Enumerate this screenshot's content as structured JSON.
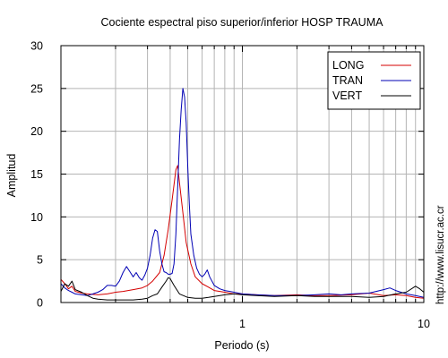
{
  "page": {
    "side_url": "http://www.lisucr.ac.cr"
  },
  "chart_data": {
    "type": "line",
    "title": "Cociente espectral piso superior/inferior  HOSP TRAUMA",
    "xlabel": "Periodo (s)",
    "ylabel": "Amplitud",
    "xscale": "log",
    "xlim": [
      0.1,
      10
    ],
    "ylim": [
      0,
      30
    ],
    "xtick_labels": [
      {
        "value": 1,
        "label": "1"
      },
      {
        "value": 10,
        "label": "10"
      }
    ],
    "ytick_labels": [
      {
        "value": 0,
        "label": "0"
      },
      {
        "value": 5,
        "label": "5"
      },
      {
        "value": 10,
        "label": "10"
      },
      {
        "value": 15,
        "label": "15"
      },
      {
        "value": 20,
        "label": "20"
      },
      {
        "value": 25,
        "label": "25"
      },
      {
        "value": 30,
        "label": "30"
      }
    ],
    "grid": true,
    "legend_position": "top-right",
    "series": [
      {
        "name": "LONG",
        "color": "#d40000",
        "points": [
          [
            0.1,
            2.7
          ],
          [
            0.105,
            2.2
          ],
          [
            0.11,
            1.6
          ],
          [
            0.115,
            1.9
          ],
          [
            0.12,
            1.3
          ],
          [
            0.13,
            1.1
          ],
          [
            0.14,
            1.0
          ],
          [
            0.16,
            0.9
          ],
          [
            0.18,
            1.0
          ],
          [
            0.2,
            1.2
          ],
          [
            0.22,
            1.3
          ],
          [
            0.25,
            1.5
          ],
          [
            0.28,
            1.7
          ],
          [
            0.3,
            2.0
          ],
          [
            0.32,
            2.5
          ],
          [
            0.35,
            3.5
          ],
          [
            0.37,
            5.5
          ],
          [
            0.39,
            8.5
          ],
          [
            0.41,
            12.0
          ],
          [
            0.43,
            15.5
          ],
          [
            0.44,
            16.0
          ],
          [
            0.45,
            14.0
          ],
          [
            0.47,
            10.5
          ],
          [
            0.49,
            7.0
          ],
          [
            0.52,
            4.5
          ],
          [
            0.55,
            3.0
          ],
          [
            0.6,
            2.2
          ],
          [
            0.65,
            1.8
          ],
          [
            0.7,
            1.4
          ],
          [
            0.8,
            1.2
          ],
          [
            0.9,
            1.0
          ],
          [
            1.0,
            1.0
          ],
          [
            1.2,
            0.9
          ],
          [
            1.5,
            0.8
          ],
          [
            2.0,
            0.9
          ],
          [
            2.5,
            0.8
          ],
          [
            3.0,
            0.8
          ],
          [
            4.0,
            0.9
          ],
          [
            5.0,
            1.1
          ],
          [
            6.0,
            0.8
          ],
          [
            7.0,
            0.9
          ],
          [
            8.0,
            0.8
          ],
          [
            9.0,
            0.6
          ],
          [
            10.0,
            0.5
          ]
        ]
      },
      {
        "name": "TRAN",
        "color": "#0000b4",
        "points": [
          [
            0.1,
            2.2
          ],
          [
            0.105,
            1.7
          ],
          [
            0.11,
            1.4
          ],
          [
            0.115,
            1.2
          ],
          [
            0.12,
            1.0
          ],
          [
            0.13,
            0.9
          ],
          [
            0.14,
            0.8
          ],
          [
            0.15,
            1.0
          ],
          [
            0.16,
            1.2
          ],
          [
            0.17,
            1.5
          ],
          [
            0.18,
            2.0
          ],
          [
            0.19,
            2.0
          ],
          [
            0.2,
            1.9
          ],
          [
            0.21,
            2.5
          ],
          [
            0.22,
            3.5
          ],
          [
            0.23,
            4.2
          ],
          [
            0.24,
            3.6
          ],
          [
            0.25,
            3.0
          ],
          [
            0.26,
            3.5
          ],
          [
            0.27,
            2.9
          ],
          [
            0.28,
            2.6
          ],
          [
            0.29,
            3.2
          ],
          [
            0.3,
            4.0
          ],
          [
            0.31,
            5.5
          ],
          [
            0.32,
            7.5
          ],
          [
            0.33,
            8.5
          ],
          [
            0.34,
            8.3
          ],
          [
            0.35,
            6.0
          ],
          [
            0.36,
            4.5
          ],
          [
            0.37,
            3.6
          ],
          [
            0.38,
            3.5
          ],
          [
            0.39,
            3.3
          ],
          [
            0.4,
            3.3
          ],
          [
            0.41,
            3.4
          ],
          [
            0.42,
            4.5
          ],
          [
            0.43,
            8.0
          ],
          [
            0.44,
            13.5
          ],
          [
            0.45,
            19.0
          ],
          [
            0.46,
            22.5
          ],
          [
            0.47,
            25.0
          ],
          [
            0.48,
            24.0
          ],
          [
            0.49,
            21.0
          ],
          [
            0.5,
            16.0
          ],
          [
            0.51,
            11.5
          ],
          [
            0.52,
            8.0
          ],
          [
            0.54,
            5.5
          ],
          [
            0.56,
            4.0
          ],
          [
            0.58,
            3.3
          ],
          [
            0.6,
            3.0
          ],
          [
            0.62,
            3.3
          ],
          [
            0.64,
            3.8
          ],
          [
            0.66,
            3.0
          ],
          [
            0.7,
            2.0
          ],
          [
            0.75,
            1.6
          ],
          [
            0.8,
            1.4
          ],
          [
            0.9,
            1.2
          ],
          [
            1.0,
            1.0
          ],
          [
            1.2,
            0.9
          ],
          [
            1.5,
            0.8
          ],
          [
            2.0,
            0.8
          ],
          [
            2.5,
            0.9
          ],
          [
            3.0,
            1.0
          ],
          [
            3.5,
            0.9
          ],
          [
            4.0,
            1.0
          ],
          [
            5.0,
            1.1
          ],
          [
            6.0,
            1.5
          ],
          [
            6.5,
            1.7
          ],
          [
            7.0,
            1.4
          ],
          [
            8.0,
            1.0
          ],
          [
            9.0,
            0.8
          ],
          [
            10.0,
            0.6
          ]
        ]
      },
      {
        "name": "VERT",
        "color": "#000000",
        "points": [
          [
            0.1,
            1.3
          ],
          [
            0.105,
            2.2
          ],
          [
            0.11,
            1.9
          ],
          [
            0.115,
            2.5
          ],
          [
            0.12,
            1.5
          ],
          [
            0.13,
            1.2
          ],
          [
            0.14,
            0.8
          ],
          [
            0.15,
            0.5
          ],
          [
            0.16,
            0.4
          ],
          [
            0.18,
            0.3
          ],
          [
            0.2,
            0.3
          ],
          [
            0.22,
            0.3
          ],
          [
            0.25,
            0.3
          ],
          [
            0.28,
            0.4
          ],
          [
            0.3,
            0.5
          ],
          [
            0.32,
            0.8
          ],
          [
            0.34,
            1.0
          ],
          [
            0.36,
            1.8
          ],
          [
            0.38,
            2.5
          ],
          [
            0.39,
            2.9
          ],
          [
            0.4,
            2.8
          ],
          [
            0.42,
            2.0
          ],
          [
            0.45,
            1.0
          ],
          [
            0.5,
            0.6
          ],
          [
            0.55,
            0.5
          ],
          [
            0.6,
            0.5
          ],
          [
            0.65,
            0.6
          ],
          [
            0.7,
            0.7
          ],
          [
            0.8,
            0.9
          ],
          [
            0.9,
            1.0
          ],
          [
            1.0,
            0.9
          ],
          [
            1.2,
            0.8
          ],
          [
            1.5,
            0.7
          ],
          [
            2.0,
            0.8
          ],
          [
            2.5,
            0.7
          ],
          [
            3.0,
            0.7
          ],
          [
            4.0,
            0.7
          ],
          [
            5.0,
            0.6
          ],
          [
            6.0,
            0.7
          ],
          [
            7.0,
            1.0
          ],
          [
            8.0,
            1.2
          ],
          [
            9.0,
            1.9
          ],
          [
            9.5,
            1.6
          ],
          [
            10.0,
            1.2
          ]
        ]
      }
    ]
  }
}
